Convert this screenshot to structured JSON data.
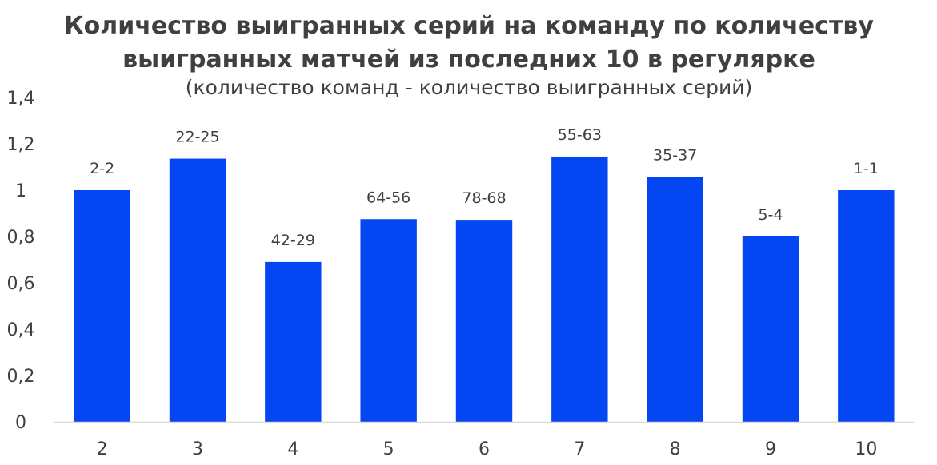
{
  "chart_data": {
    "type": "bar",
    "title_lines": [
      "Количество выигранных серий на команду по количеству",
      "выигранных матчей из последних 10 в регулярке"
    ],
    "subtitle": "(количество команд - количество выигранных серий)",
    "xlabel": "",
    "ylabel": "",
    "categories": [
      "2",
      "3",
      "4",
      "5",
      "6",
      "7",
      "8",
      "9",
      "10"
    ],
    "values": [
      1.0,
      1.136,
      0.69,
      0.875,
      0.872,
      1.145,
      1.057,
      0.8,
      1.0
    ],
    "data_labels": [
      "2-2",
      "22-25",
      "42-29",
      "64-56",
      "78-68",
      "55-63",
      "35-37",
      "5-4",
      "1-1"
    ],
    "ylim": [
      0,
      1.4
    ],
    "yticks": [
      0,
      0.2,
      0.4,
      0.6,
      0.8,
      1,
      1.2,
      1.4
    ],
    "ytick_labels": [
      "0",
      "0,2",
      "0,4",
      "0,6",
      "0,8",
      "1",
      "1,2",
      "1,4"
    ],
    "grid": false,
    "legend": "none",
    "bar_color": "#0346F2",
    "axis_color": "#D9D9D9",
    "text_color": "#404040"
  }
}
